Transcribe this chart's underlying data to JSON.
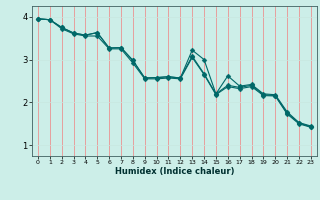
{
  "xlabel": "Humidex (Indice chaleur)",
  "bg_color": "#cceee8",
  "grid_color_v": "#f08080",
  "grid_color_h": "#c8e8e0",
  "line_color": "#006868",
  "xlim": [
    -0.5,
    23.5
  ],
  "ylim": [
    0.75,
    4.25
  ],
  "xticks": [
    0,
    1,
    2,
    3,
    4,
    5,
    6,
    7,
    8,
    9,
    10,
    11,
    12,
    13,
    14,
    15,
    16,
    17,
    18,
    19,
    20,
    21,
    22,
    23
  ],
  "yticks": [
    1,
    2,
    3,
    4
  ],
  "line1_x": [
    0,
    1,
    2,
    3,
    4,
    5,
    6,
    7,
    8,
    9,
    10,
    11,
    12,
    13,
    14,
    15,
    16,
    17,
    18,
    19,
    20,
    21,
    22,
    23
  ],
  "line1_y": [
    3.95,
    3.93,
    3.75,
    3.62,
    3.57,
    3.63,
    3.27,
    3.28,
    2.98,
    2.57,
    2.58,
    2.6,
    2.57,
    3.22,
    3.0,
    2.2,
    2.62,
    2.38,
    2.42,
    2.2,
    2.18,
    1.78,
    1.53,
    1.45
  ],
  "line2_x": [
    0,
    1,
    2,
    3,
    4,
    5,
    6,
    7,
    8,
    9,
    10,
    11,
    12,
    13,
    14,
    15,
    16,
    17,
    18,
    19,
    20,
    21,
    22,
    23
  ],
  "line2_y": [
    3.95,
    3.93,
    3.75,
    3.62,
    3.57,
    3.63,
    3.27,
    3.28,
    2.98,
    2.57,
    2.58,
    2.6,
    2.57,
    3.08,
    2.67,
    2.2,
    2.4,
    2.35,
    2.4,
    2.18,
    2.16,
    1.75,
    1.52,
    1.43
  ],
  "line3_x": [
    0,
    1,
    2,
    3,
    4,
    5,
    6,
    7,
    8,
    9,
    10,
    11,
    12,
    13,
    14,
    15,
    16,
    17,
    18,
    19,
    20,
    21,
    22,
    23
  ],
  "line3_y": [
    3.95,
    3.93,
    3.72,
    3.6,
    3.55,
    3.55,
    3.25,
    3.25,
    2.92,
    2.55,
    2.55,
    2.57,
    2.55,
    3.05,
    2.65,
    2.18,
    2.37,
    2.32,
    2.37,
    2.16,
    2.15,
    1.73,
    1.5,
    1.42
  ],
  "marker_size": 2.5,
  "line_width": 0.8
}
